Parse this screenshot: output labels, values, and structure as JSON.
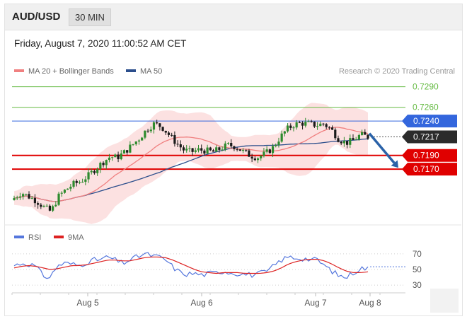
{
  "header": {
    "pair": "AUD/USD",
    "timeframe": "30 MIN"
  },
  "timestamp": "Friday, August 7, 2020 11:00:52 AM CET",
  "colors": {
    "ma20": "#f08080",
    "ma50": "#2b4e8c",
    "bull": "#2e8b2e",
    "bear": "#1a1a1a",
    "support": "#e00000",
    "resistance_green": "#66bb44",
    "resistance_blue": "#3366dd",
    "rsi": "#5577dd",
    "rsi_ma": "#dd2222",
    "arrow": "#2a62a8"
  },
  "chart_data": [
    {
      "type": "candlestick",
      "title": "",
      "legend": {
        "placement": "top-left",
        "entries": [
          "MA 20 + Bollinger Bands",
          "MA 50"
        ]
      },
      "credit": "Research © 2020 Trading Central",
      "ylim": [
        0.7095,
        0.7305
      ],
      "x_ticks": [
        "Aug 5",
        "Aug 6",
        "Aug 7",
        "Aug 8"
      ],
      "price_levels": [
        {
          "value": 0.729,
          "label": "0.7290",
          "kind": "resistance-green"
        },
        {
          "value": 0.726,
          "label": "0.7260",
          "kind": "resistance-green"
        },
        {
          "value": 0.724,
          "label": "0.7240",
          "kind": "resistance-blue"
        },
        {
          "value": 0.719,
          "label": "0.7190",
          "kind": "support"
        },
        {
          "value": 0.717,
          "label": "0.7170",
          "kind": "support"
        }
      ],
      "last_price": {
        "value": 0.7217,
        "label": "0.7217"
      },
      "forecast_arrow": {
        "from": 0.7222,
        "to": 0.7172
      },
      "close_path": [
        0.7128,
        0.7136,
        0.713,
        0.7124,
        0.7115,
        0.7108,
        0.713,
        0.714,
        0.7148,
        0.7152,
        0.716,
        0.717,
        0.718,
        0.7188,
        0.7187,
        0.7195,
        0.7205,
        0.7215,
        0.7228,
        0.7236,
        0.7232,
        0.722,
        0.7208,
        0.7198,
        0.7195,
        0.7198,
        0.7197,
        0.7195,
        0.72,
        0.7205,
        0.7203,
        0.7196,
        0.719,
        0.7187,
        0.7192,
        0.72,
        0.7215,
        0.7228,
        0.7235,
        0.7237,
        0.7236,
        0.7234,
        0.7236,
        0.7228,
        0.7214,
        0.7208,
        0.7212,
        0.722,
        0.7217
      ]
    },
    {
      "type": "line",
      "title": "",
      "legend": {
        "placement": "top-left"
      },
      "ylim": [
        22,
        78
      ],
      "y_ticks": [
        70,
        50,
        30
      ],
      "series": [
        {
          "name": "RSI",
          "values": [
            55,
            58,
            57,
            54,
            42,
            40,
            55,
            58,
            57,
            55,
            59,
            62,
            63,
            66,
            62,
            58,
            62,
            66,
            70,
            68,
            66,
            62,
            53,
            46,
            44,
            45,
            43,
            45,
            46,
            48,
            46,
            45,
            44,
            43,
            45,
            47,
            55,
            62,
            66,
            65,
            64,
            63,
            62,
            55,
            48,
            42,
            40,
            46,
            52,
            51
          ]
        },
        {
          "name": "9MA",
          "values": [
            52,
            54,
            55,
            54,
            52,
            50,
            51,
            53,
            55,
            55,
            56,
            58,
            60,
            62,
            62,
            61,
            61,
            63,
            65,
            66,
            66,
            65,
            62,
            58,
            54,
            50,
            47,
            46,
            45,
            46,
            46,
            46,
            45,
            45,
            45,
            46,
            48,
            52,
            57,
            60,
            62,
            63,
            63,
            61,
            57,
            52,
            48,
            46,
            46,
            47
          ]
        }
      ]
    }
  ]
}
